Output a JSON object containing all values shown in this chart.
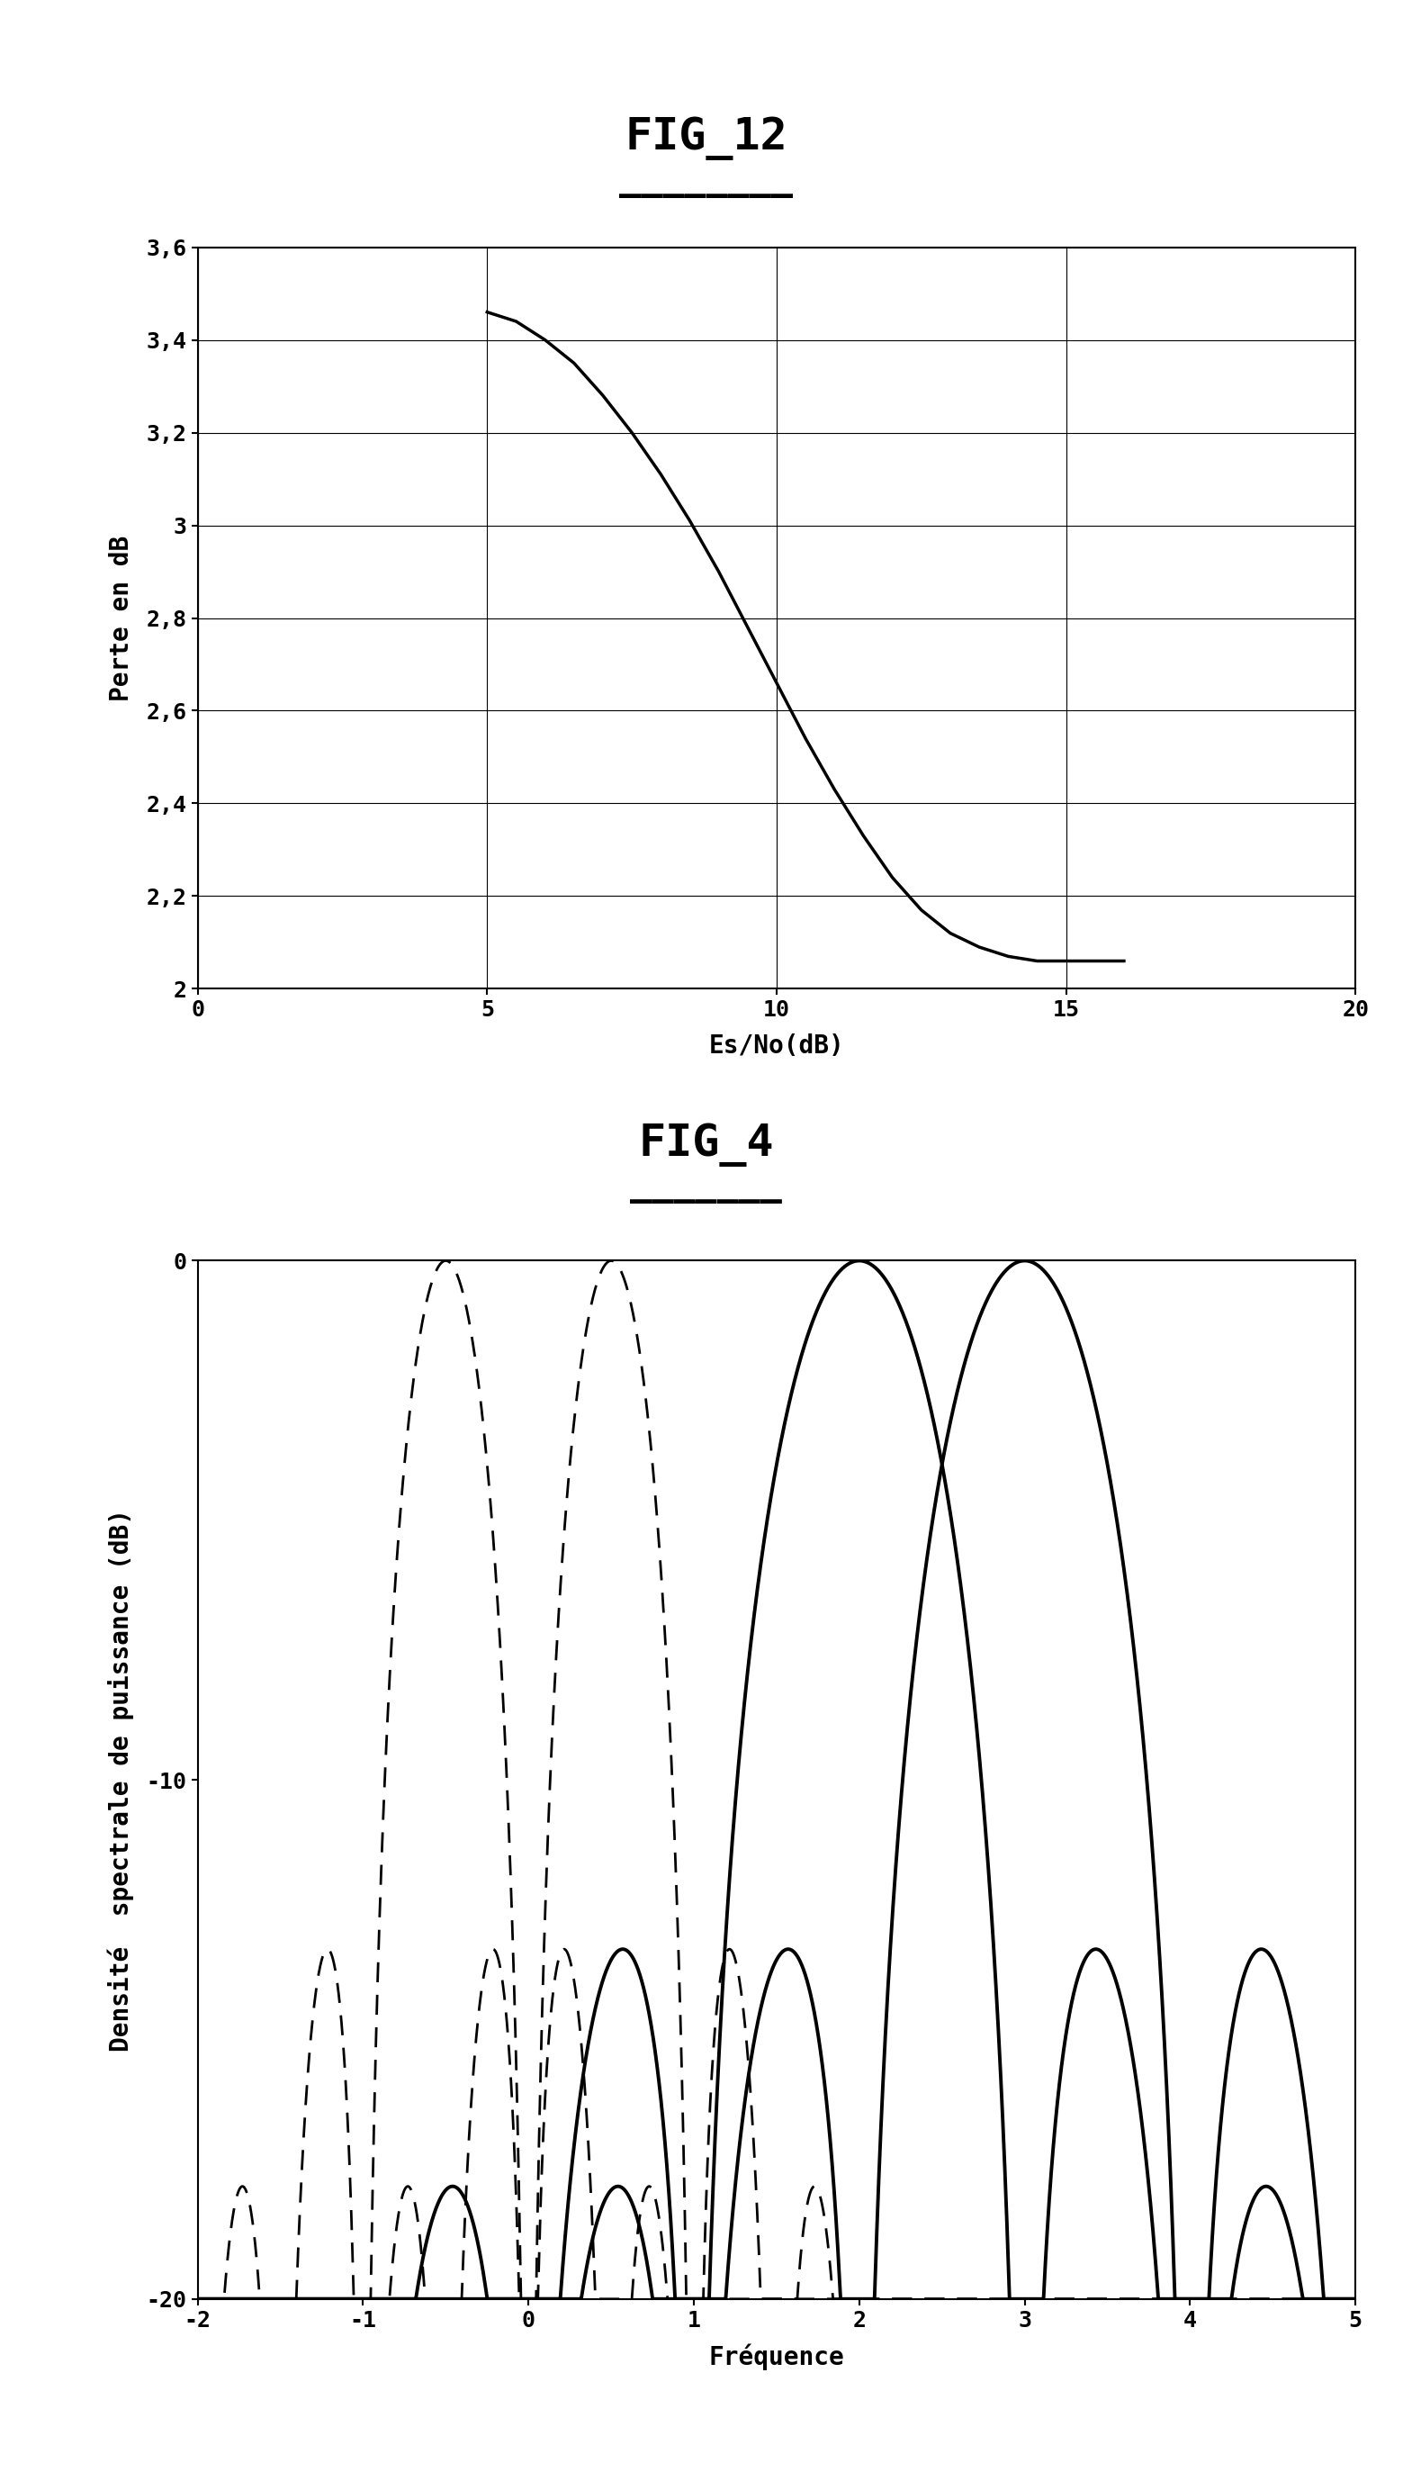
{
  "fig12_title": "FIG_12",
  "fig4_title": "FIG_4",
  "fig12_xlabel": "Es/No(dB)",
  "fig12_ylabel": "Perte en dB",
  "fig4_xlabel": "Fréquence",
  "fig4_ylabel": "Densité  spectrale de puissance (dB)",
  "fig12_xlim": [
    0,
    20
  ],
  "fig12_ylim": [
    2.0,
    3.6
  ],
  "fig12_xticks": [
    0,
    5,
    10,
    15,
    20
  ],
  "fig12_yticks": [
    2.0,
    2.2,
    2.4,
    2.6,
    2.8,
    3.0,
    3.2,
    3.4,
    3.6
  ],
  "fig12_ytick_labels": [
    "2",
    "2,2",
    "2,4",
    "2,6",
    "2,8",
    "3",
    "3,2",
    "3,4",
    "3,6"
  ],
  "fig12_curve_x": [
    5.0,
    5.5,
    6.0,
    6.5,
    7.0,
    7.5,
    8.0,
    8.5,
    9.0,
    9.5,
    10.0,
    10.5,
    11.0,
    11.5,
    12.0,
    12.5,
    13.0,
    13.5,
    14.0,
    14.5,
    15.0,
    15.5,
    16.0
  ],
  "fig12_curve_y": [
    3.46,
    3.44,
    3.4,
    3.35,
    3.28,
    3.2,
    3.11,
    3.01,
    2.9,
    2.78,
    2.66,
    2.54,
    2.43,
    2.33,
    2.24,
    2.17,
    2.12,
    2.09,
    2.07,
    2.06,
    2.06,
    2.06,
    2.06
  ],
  "fig4_xlim": [
    -2,
    5
  ],
  "fig4_ylim": [
    -20,
    0
  ],
  "fig4_xticks": [
    -2,
    -1,
    0,
    1,
    2,
    3,
    4,
    5
  ],
  "fig4_yticks": [
    -20,
    -10,
    0
  ],
  "solid_centers": [
    2.0,
    3.0
  ],
  "dashed_centers": [
    -0.5,
    0.5
  ],
  "solid_bw": 1.0,
  "dashed_bw": 0.5,
  "background_color": "#ffffff",
  "line_color": "#000000",
  "fig12_title_fontsize": 36,
  "fig4_title_fontsize": 36,
  "axis_label_fontsize": 20,
  "tick_fontsize": 18
}
